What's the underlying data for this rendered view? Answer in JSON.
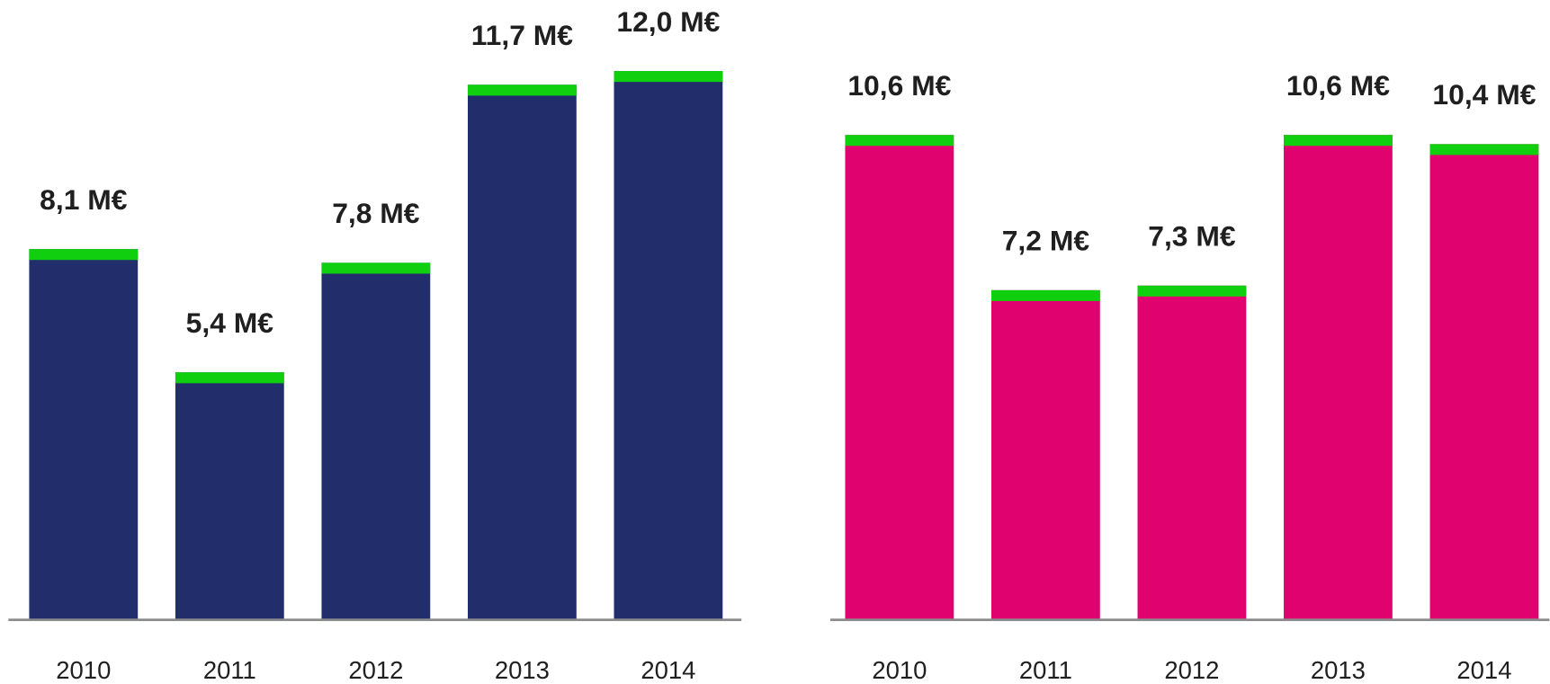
{
  "chart_data": [
    {
      "type": "bar",
      "categories": [
        "2010",
        "2011",
        "2012",
        "2013",
        "2014"
      ],
      "values": [
        8.1,
        5.4,
        7.8,
        11.7,
        12.0
      ],
      "value_labels": [
        "8,1 M€",
        "5,4 M€",
        "7,8 M€",
        "11,7 M€",
        "12,0 M€"
      ],
      "color": "#212e6b",
      "cap_color": "#0fcf0f",
      "ylim": [
        0,
        12
      ]
    },
    {
      "type": "bar",
      "categories": [
        "2010",
        "2011",
        "2012",
        "2013",
        "2014"
      ],
      "values": [
        10.6,
        7.2,
        7.3,
        10.6,
        10.4
      ],
      "value_labels": [
        "10,6 M€",
        "7,2 M€",
        "7,3 M€",
        "10,6 M€",
        "10,4 M€"
      ],
      "color": "#e0036f",
      "cap_color": "#0fcf0f",
      "ylim": [
        0,
        12
      ]
    }
  ]
}
